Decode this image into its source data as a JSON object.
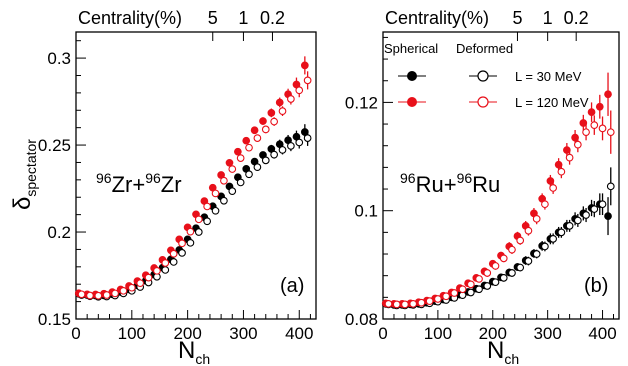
{
  "chart_data": [
    {
      "type": "scatter",
      "panel_label": "(a)",
      "system": {
        "a": "96",
        "b": "Zr",
        "plus": "+",
        "c": "96",
        "d": "Zr"
      },
      "xlabel": {
        "main": "N",
        "sub": "ch"
      },
      "ylabel": {
        "main": "δ",
        "sub": "spectator"
      },
      "top_axis": {
        "label": "Centrality(%)",
        "ticks": [
          {
            "label": "5",
            "x": 245
          },
          {
            "label": "1",
            "x": 300
          },
          {
            "label": "0.2",
            "x": 352
          }
        ]
      },
      "xlim": [
        0,
        430
      ],
      "ylim": [
        0.15,
        0.315
      ],
      "xticks": [
        0,
        100,
        200,
        300,
        400
      ],
      "yticks": [
        0.15,
        0.2,
        0.25,
        0.3
      ],
      "ytick_labels": [
        "0.15",
        "0.2",
        "0.25",
        "0.3"
      ],
      "series": [
        {
          "color": "#000000",
          "marker": "filled",
          "x": [
            5,
            20,
            35,
            50,
            65,
            80,
            95,
            110,
            125,
            140,
            155,
            170,
            185,
            200,
            215,
            230,
            245,
            260,
            275,
            290,
            305,
            320,
            335,
            350,
            365,
            380,
            395,
            410
          ],
          "y": [
            0.1645,
            0.1638,
            0.1635,
            0.1636,
            0.1642,
            0.1655,
            0.167,
            0.1693,
            0.172,
            0.1755,
            0.1795,
            0.1843,
            0.1897,
            0.1958,
            0.2022,
            0.2085,
            0.2148,
            0.2205,
            0.2262,
            0.2315,
            0.2363,
            0.2405,
            0.2443,
            0.2478,
            0.2505,
            0.2528,
            0.2548,
            0.2575
          ],
          "err": [
            0.0008,
            0.0008,
            0.0008,
            0.0008,
            0.0008,
            0.0008,
            0.0008,
            0.0008,
            0.0009,
            0.0009,
            0.0009,
            0.001,
            0.001,
            0.001,
            0.0011,
            0.0012,
            0.0012,
            0.0013,
            0.0014,
            0.0015,
            0.0016,
            0.0018,
            0.002,
            0.0023,
            0.0026,
            0.003,
            0.0035,
            0.0045
          ]
        },
        {
          "color": "#000000",
          "marker": "open",
          "x": [
            10,
            25,
            40,
            55,
            70,
            85,
            100,
            115,
            130,
            145,
            160,
            175,
            190,
            205,
            220,
            235,
            250,
            265,
            280,
            295,
            310,
            325,
            340,
            355,
            370,
            385,
            400,
            415
          ],
          "y": [
            0.1638,
            0.1631,
            0.1628,
            0.1629,
            0.1635,
            0.1647,
            0.1662,
            0.1684,
            0.171,
            0.1743,
            0.1782,
            0.1828,
            0.188,
            0.1938,
            0.2,
            0.2062,
            0.2122,
            0.218,
            0.2235,
            0.2285,
            0.2332,
            0.2373,
            0.2412,
            0.2445,
            0.2472,
            0.2495,
            0.2515,
            0.254
          ],
          "err": [
            0.0008,
            0.0008,
            0.0008,
            0.0008,
            0.0008,
            0.0008,
            0.0008,
            0.0008,
            0.0009,
            0.0009,
            0.0009,
            0.001,
            0.001,
            0.001,
            0.0011,
            0.0012,
            0.0012,
            0.0013,
            0.0014,
            0.0015,
            0.0016,
            0.0018,
            0.002,
            0.0023,
            0.0026,
            0.003,
            0.0035,
            0.0045
          ]
        },
        {
          "color": "#e8101a",
          "marker": "filled",
          "x": [
            5,
            20,
            35,
            50,
            65,
            80,
            95,
            110,
            125,
            140,
            155,
            170,
            185,
            200,
            215,
            230,
            245,
            260,
            275,
            290,
            305,
            320,
            335,
            350,
            365,
            380,
            395,
            410
          ],
          "y": [
            0.1648,
            0.1642,
            0.1641,
            0.1645,
            0.1655,
            0.167,
            0.169,
            0.1718,
            0.1752,
            0.1793,
            0.184,
            0.1895,
            0.1958,
            0.2027,
            0.2102,
            0.2178,
            0.2255,
            0.2328,
            0.2398,
            0.2462,
            0.2525,
            0.2585,
            0.2638,
            0.2685,
            0.2745,
            0.2792,
            0.2848,
            0.2958
          ],
          "err": [
            0.0008,
            0.0008,
            0.0008,
            0.0008,
            0.0008,
            0.0008,
            0.0008,
            0.0009,
            0.0009,
            0.0009,
            0.001,
            0.001,
            0.001,
            0.0011,
            0.0011,
            0.0012,
            0.0013,
            0.0014,
            0.0015,
            0.0016,
            0.0018,
            0.002,
            0.0022,
            0.0025,
            0.0028,
            0.0032,
            0.004,
            0.0052
          ]
        },
        {
          "color": "#e8101a",
          "marker": "open",
          "x": [
            10,
            25,
            40,
            55,
            70,
            85,
            100,
            115,
            130,
            145,
            160,
            175,
            190,
            205,
            220,
            235,
            250,
            265,
            280,
            295,
            310,
            325,
            340,
            355,
            370,
            385,
            400,
            415
          ],
          "y": [
            0.1642,
            0.1635,
            0.1634,
            0.1638,
            0.1647,
            0.1662,
            0.168,
            0.1706,
            0.1738,
            0.1777,
            0.1822,
            0.1875,
            0.1935,
            0.2002,
            0.2073,
            0.2147,
            0.2222,
            0.2295,
            0.2362,
            0.2425,
            0.2485,
            0.254,
            0.259,
            0.2635,
            0.2695,
            0.2765,
            0.2815,
            0.2872
          ],
          "err": [
            0.0008,
            0.0008,
            0.0008,
            0.0008,
            0.0008,
            0.0008,
            0.0008,
            0.0009,
            0.0009,
            0.0009,
            0.001,
            0.001,
            0.001,
            0.0011,
            0.0011,
            0.0012,
            0.0013,
            0.0014,
            0.0015,
            0.0016,
            0.0018,
            0.002,
            0.0022,
            0.0025,
            0.0028,
            0.0032,
            0.004,
            0.0052
          ]
        }
      ]
    },
    {
      "type": "scatter",
      "panel_label": "(b)",
      "system": {
        "a": "96",
        "b": "Ru",
        "plus": "+",
        "c": "96",
        "d": "Ru"
      },
      "xlabel": {
        "main": "N",
        "sub": "ch"
      },
      "top_axis": {
        "label": "Centrality(%)",
        "ticks": [
          {
            "label": "5",
            "x": 245
          },
          {
            "label": "1",
            "x": 300
          },
          {
            "label": "0.2",
            "x": 352
          }
        ]
      },
      "xlim": [
        0,
        430
      ],
      "ylim": [
        0.08,
        0.133
      ],
      "xticks": [
        0,
        100,
        200,
        300,
        400
      ],
      "yticks": [
        0.08,
        0.1,
        0.12
      ],
      "ytick_labels": [
        "0.08",
        "0.1",
        "0.12"
      ],
      "legend": {
        "headers": [
          "Spherical",
          "Deformed"
        ],
        "rows": [
          {
            "label": "L = 30 MeV",
            "color": "#000000"
          },
          {
            "label": "L = 120 MeV",
            "color": "#e8101a"
          }
        ]
      },
      "series": [
        {
          "color": "#000000",
          "marker": "filled",
          "x": [
            5,
            20,
            35,
            50,
            65,
            80,
            95,
            110,
            125,
            140,
            155,
            170,
            185,
            200,
            215,
            230,
            245,
            260,
            275,
            290,
            305,
            320,
            335,
            350,
            365,
            380,
            395,
            410
          ],
          "y": [
            0.0828,
            0.0826,
            0.0826,
            0.0827,
            0.0828,
            0.083,
            0.0833,
            0.0836,
            0.084,
            0.0845,
            0.085,
            0.0856,
            0.0862,
            0.0869,
            0.0877,
            0.0886,
            0.0896,
            0.0908,
            0.0921,
            0.0935,
            0.0948,
            0.096,
            0.0972,
            0.0985,
            0.0995,
            0.1005,
            0.1012,
            0.099
          ],
          "err": [
            0.0005,
            0.0005,
            0.0005,
            0.0005,
            0.0005,
            0.0005,
            0.0005,
            0.0005,
            0.0005,
            0.0005,
            0.0006,
            0.0006,
            0.0006,
            0.0006,
            0.0007,
            0.0007,
            0.0007,
            0.0008,
            0.0008,
            0.0009,
            0.001,
            0.001,
            0.0011,
            0.0012,
            0.0013,
            0.0015,
            0.002,
            0.0035
          ]
        },
        {
          "color": "#000000",
          "marker": "open",
          "x": [
            10,
            25,
            40,
            55,
            70,
            85,
            100,
            115,
            130,
            145,
            160,
            175,
            190,
            205,
            220,
            235,
            250,
            265,
            280,
            295,
            310,
            325,
            340,
            355,
            370,
            385,
            400,
            415
          ],
          "y": [
            0.0827,
            0.0825,
            0.0825,
            0.0826,
            0.0827,
            0.0829,
            0.0832,
            0.0835,
            0.0839,
            0.0844,
            0.0849,
            0.0855,
            0.0861,
            0.0868,
            0.0876,
            0.0885,
            0.0895,
            0.0907,
            0.092,
            0.0934,
            0.0948,
            0.096,
            0.0972,
            0.0982,
            0.0992,
            0.1003,
            0.1012,
            0.1045
          ],
          "err": [
            0.0005,
            0.0005,
            0.0005,
            0.0005,
            0.0005,
            0.0005,
            0.0005,
            0.0005,
            0.0005,
            0.0005,
            0.0006,
            0.0006,
            0.0006,
            0.0006,
            0.0007,
            0.0007,
            0.0007,
            0.0008,
            0.0008,
            0.0009,
            0.001,
            0.001,
            0.0011,
            0.0012,
            0.0013,
            0.0015,
            0.002,
            0.0035
          ]
        },
        {
          "color": "#e8101a",
          "marker": "filled",
          "x": [
            5,
            20,
            35,
            50,
            65,
            80,
            95,
            110,
            125,
            140,
            155,
            170,
            185,
            200,
            215,
            230,
            245,
            260,
            275,
            290,
            305,
            320,
            335,
            350,
            365,
            380,
            395,
            410
          ],
          "y": [
            0.0829,
            0.0828,
            0.0828,
            0.0829,
            0.0831,
            0.0834,
            0.0838,
            0.0843,
            0.0849,
            0.0857,
            0.0866,
            0.0876,
            0.0888,
            0.0902,
            0.0917,
            0.0934,
            0.0953,
            0.0972,
            0.0995,
            0.1022,
            0.1055,
            0.1085,
            0.1112,
            0.1135,
            0.1162,
            0.1182,
            0.1192,
            0.1215
          ],
          "err": [
            0.0005,
            0.0005,
            0.0005,
            0.0005,
            0.0005,
            0.0005,
            0.0005,
            0.0005,
            0.0005,
            0.0006,
            0.0006,
            0.0006,
            0.0007,
            0.0007,
            0.0007,
            0.0008,
            0.0008,
            0.0009,
            0.001,
            0.001,
            0.0011,
            0.0012,
            0.0013,
            0.0014,
            0.0015,
            0.0018,
            0.0022,
            0.004
          ]
        },
        {
          "color": "#e8101a",
          "marker": "open",
          "x": [
            10,
            25,
            40,
            55,
            70,
            85,
            100,
            115,
            130,
            145,
            160,
            175,
            190,
            205,
            220,
            235,
            250,
            265,
            280,
            295,
            310,
            325,
            340,
            355,
            370,
            385,
            400,
            415
          ],
          "y": [
            0.0828,
            0.0827,
            0.0827,
            0.0828,
            0.083,
            0.0833,
            0.0837,
            0.0842,
            0.0848,
            0.0855,
            0.0864,
            0.0874,
            0.0885,
            0.0898,
            0.0912,
            0.0928,
            0.0945,
            0.0963,
            0.0985,
            0.1012,
            0.1042,
            0.1072,
            0.1098,
            0.1122,
            0.1145,
            0.1158,
            0.1152,
            0.1145
          ],
          "err": [
            0.0005,
            0.0005,
            0.0005,
            0.0005,
            0.0005,
            0.0005,
            0.0005,
            0.0005,
            0.0005,
            0.0006,
            0.0006,
            0.0006,
            0.0007,
            0.0007,
            0.0007,
            0.0008,
            0.0008,
            0.0009,
            0.001,
            0.001,
            0.0011,
            0.0012,
            0.0013,
            0.0014,
            0.0015,
            0.0018,
            0.0022,
            0.004
          ]
        }
      ]
    }
  ]
}
